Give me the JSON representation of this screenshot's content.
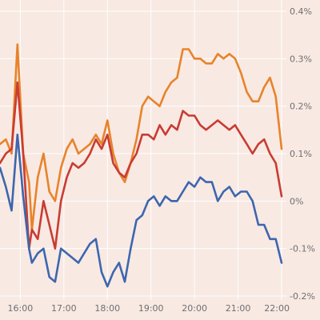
{
  "chart_data": {
    "type": "line",
    "title": "",
    "xlabel": "",
    "ylabel": "",
    "x_ticks": [
      "16:00",
      "17:00",
      "18:00",
      "19:00",
      "20:00",
      "21:00",
      "22:00"
    ],
    "y_ticks": [
      "0.4%",
      "0.3%",
      "0.2%",
      "0.1%",
      "0%",
      "-0.1%",
      "-0.2%"
    ],
    "y_tick_values": [
      0.4,
      0.3,
      0.2,
      0.1,
      0.0,
      -0.1,
      -0.2
    ],
    "ylim": [
      -0.2,
      0.4
    ],
    "xlim": [
      "15:32",
      "22:00"
    ],
    "grid": true,
    "y_axis_side": "right",
    "x": [
      "15:32",
      "15:40",
      "15:48",
      "15:56",
      "16:04",
      "16:12",
      "16:16",
      "16:24",
      "16:32",
      "16:40",
      "16:48",
      "16:56",
      "17:04",
      "17:12",
      "17:20",
      "17:28",
      "17:36",
      "17:44",
      "17:52",
      "18:00",
      "18:08",
      "18:16",
      "18:24",
      "18:32",
      "18:40",
      "18:48",
      "18:56",
      "19:04",
      "19:12",
      "19:20",
      "19:28",
      "19:36",
      "19:44",
      "19:52",
      "20:00",
      "20:08",
      "20:16",
      "20:24",
      "20:32",
      "20:40",
      "20:48",
      "20:56",
      "21:04",
      "21:12",
      "21:20",
      "21:28",
      "21:36",
      "21:44",
      "21:52",
      "22:00"
    ],
    "series": [
      {
        "color": "#e8832a",
        "values": [
          0.12,
          0.13,
          0.1,
          0.33,
          0.1,
          0.04,
          -0.06,
          0.05,
          0.1,
          0.02,
          0.0,
          0.07,
          0.11,
          0.13,
          0.1,
          0.11,
          0.12,
          0.14,
          0.12,
          0.17,
          0.1,
          0.06,
          0.04,
          0.08,
          0.13,
          0.2,
          0.22,
          0.21,
          0.2,
          0.23,
          0.25,
          0.26,
          0.32,
          0.32,
          0.3,
          0.3,
          0.29,
          0.29,
          0.31,
          0.3,
          0.31,
          0.3,
          0.27,
          0.23,
          0.21,
          0.21,
          0.24,
          0.26,
          0.22,
          0.11
        ]
      },
      {
        "color": "#c83c32",
        "values": [
          0.08,
          0.1,
          0.11,
          0.25,
          0.1,
          -0.1,
          -0.06,
          -0.08,
          0.0,
          -0.05,
          -0.1,
          0.0,
          0.05,
          0.08,
          0.07,
          0.08,
          0.1,
          0.13,
          0.11,
          0.14,
          0.08,
          0.06,
          0.05,
          0.08,
          0.1,
          0.14,
          0.14,
          0.13,
          0.16,
          0.14,
          0.16,
          0.15,
          0.19,
          0.18,
          0.18,
          0.16,
          0.15,
          0.16,
          0.17,
          0.16,
          0.15,
          0.16,
          0.14,
          0.12,
          0.1,
          0.12,
          0.13,
          0.1,
          0.08,
          0.01
        ]
      },
      {
        "color": "#3d66ae",
        "values": [
          0.07,
          0.03,
          -0.02,
          0.14,
          0.01,
          -0.1,
          -0.13,
          -0.11,
          -0.1,
          -0.16,
          -0.17,
          -0.1,
          -0.11,
          -0.12,
          -0.13,
          -0.11,
          -0.09,
          -0.08,
          -0.15,
          -0.18,
          -0.15,
          -0.13,
          -0.17,
          -0.1,
          -0.04,
          -0.03,
          0.0,
          0.01,
          -0.01,
          0.01,
          0.0,
          0.0,
          0.02,
          0.04,
          0.03,
          0.05,
          0.04,
          0.04,
          0.0,
          0.02,
          0.03,
          0.01,
          0.02,
          0.02,
          0.0,
          -0.05,
          -0.05,
          -0.08,
          -0.08,
          -0.13
        ]
      }
    ]
  }
}
